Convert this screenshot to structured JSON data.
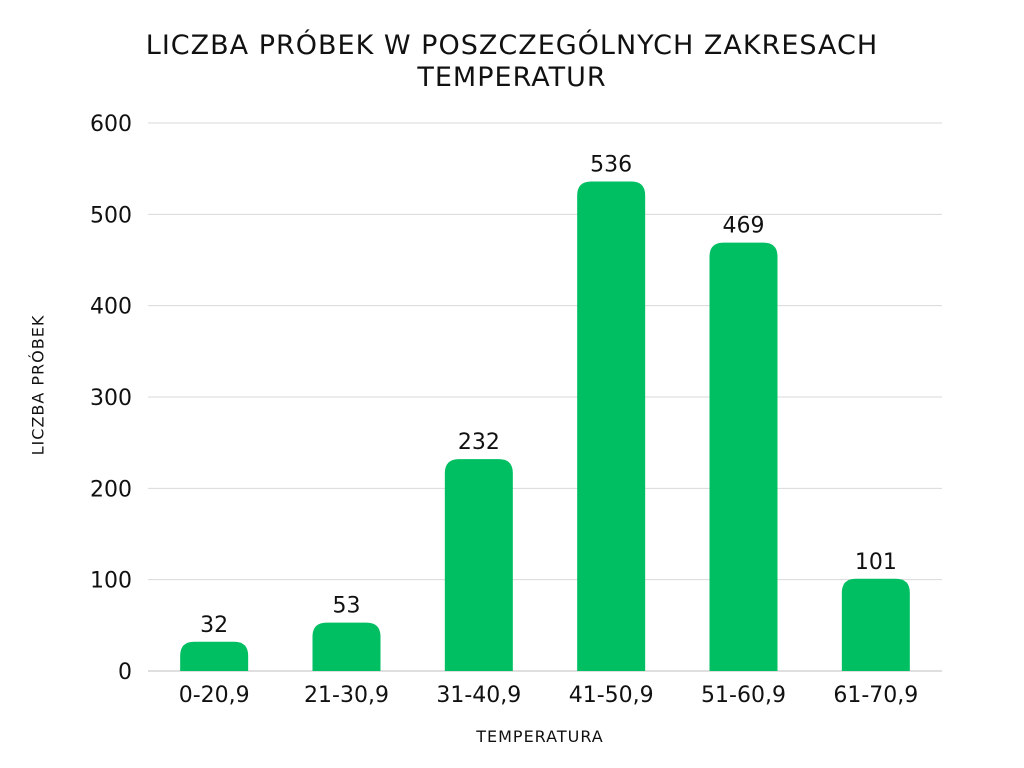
{
  "chart_data": {
    "type": "bar",
    "title": "LICZBA PRÓBEK W POSZCZEGÓLNYCH ZAKRESACH\nTEMPERATUR",
    "xlabel": "TEMPERATURA",
    "ylabel": "LICZBA PRÓBEK",
    "categories": [
      "0-20,9",
      "21-30,9",
      "31-40,9",
      "41-50,9",
      "51-60,9",
      "61-70,9"
    ],
    "values": [
      32,
      53,
      232,
      536,
      469,
      101
    ],
    "ylim": [
      0,
      600
    ],
    "yticks": [
      0,
      100,
      200,
      300,
      400,
      500,
      600
    ],
    "grid": true,
    "legend": "none",
    "bar_color": "#00bf63",
    "grid_color": "#d9d9d9"
  }
}
